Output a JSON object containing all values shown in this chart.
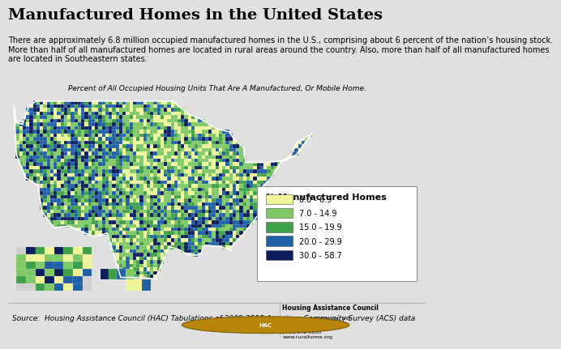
{
  "title": "Manufactured Homes in the United States",
  "subtitle": "There are approximately 6.8 million occupied manufactured homes in the U.S., comprising about 6 percent of the nation’s housing stock.\nMore than half of all manufactured homes are located in rural areas around the country. Also, more than half of all manufactured homes\nare located in Southeastern states.",
  "map_title": "Percent of All Occupied Housing Units That Are A Manufactured, Or Mobile Home.",
  "legend_title": "% Manufactured Homes",
  "legend_labels": [
    "0.0 - 6.9",
    "7.0 - 14.9",
    "15.0 - 19.9",
    "20.0 - 29.9",
    "30.0 - 58.7"
  ],
  "legend_colors": [
    "#eef598",
    "#7ec965",
    "#3fa04a",
    "#2060a8",
    "#0d1d5e"
  ],
  "source_text": "Source:  Housing Assistance Council (HAC) Tabulations of 2009-2013 American Community Survey (ACS) data",
  "org_name": "Housing Assistance Council",
  "org_address": "1025 Vermont Avenue, NW\nSuite 606\nWashington, DC 20005\n(202) 842-8600\nwww.ruralhome.org",
  "map_bg_color": "#d0d0d0",
  "fig_bg_color": "#e0e0e0",
  "panel_bg_color": "#d0d0d0",
  "title_fontsize": 14,
  "subtitle_fontsize": 7,
  "map_title_fontsize": 6.5,
  "legend_fontsize": 8,
  "source_fontsize": 6.5
}
